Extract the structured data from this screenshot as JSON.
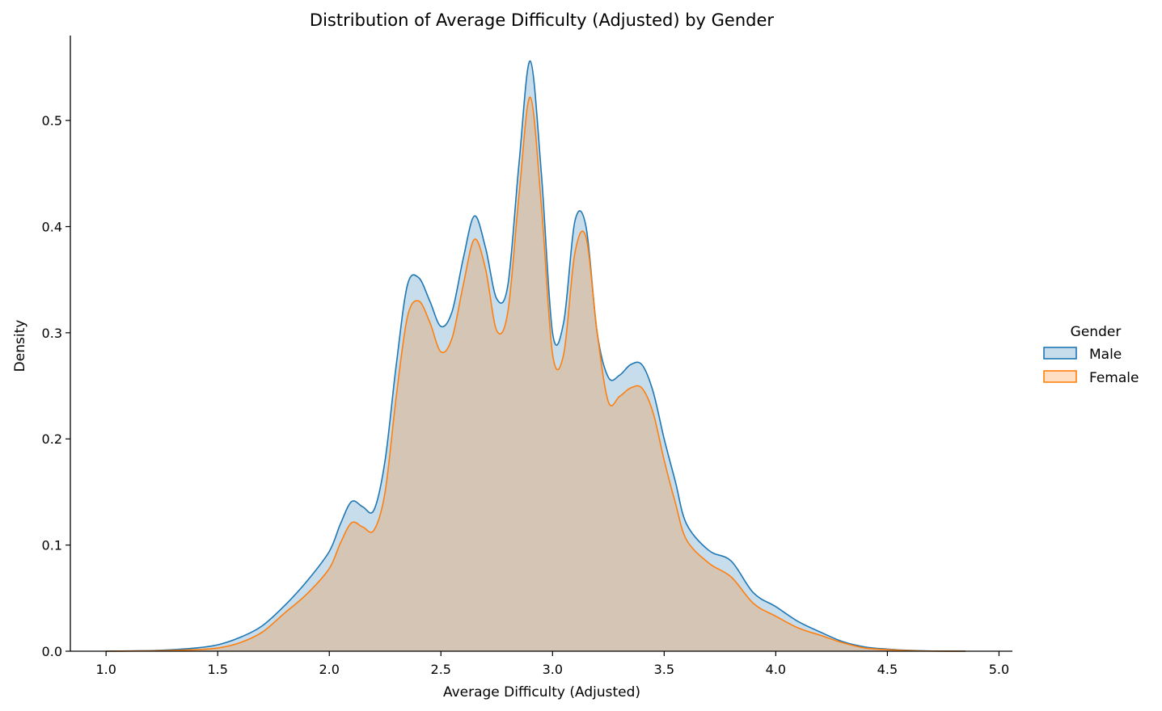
{
  "chart_data": {
    "type": "area",
    "title": "Distribution of Average Difficulty (Adjusted) by Gender",
    "xlabel": "Average Difficulty (Adjusted)",
    "ylabel": "Density",
    "xlim": [
      0.84,
      5.06
    ],
    "ylim": [
      0,
      0.58
    ],
    "xticks": [
      "1.0",
      "1.5",
      "2.0",
      "2.5",
      "3.0",
      "3.5",
      "4.0",
      "4.5",
      "5.0"
    ],
    "yticks": [
      "0.0",
      "0.1",
      "0.2",
      "0.3",
      "0.4",
      "0.5"
    ],
    "grid": false,
    "legend": {
      "title": "Gender",
      "placement": "right",
      "entries": [
        "Male",
        "Female"
      ]
    },
    "series": [
      {
        "name": "Male",
        "line_color": "#1f77b4",
        "fill_color": "#1f77b4",
        "x": [
          1.0,
          1.2,
          1.3,
          1.4,
          1.5,
          1.6,
          1.7,
          1.8,
          1.9,
          2.0,
          2.05,
          2.1,
          2.15,
          2.2,
          2.25,
          2.3,
          2.35,
          2.4,
          2.45,
          2.5,
          2.55,
          2.6,
          2.65,
          2.7,
          2.75,
          2.8,
          2.85,
          2.9,
          2.95,
          3.0,
          3.05,
          3.1,
          3.15,
          3.2,
          3.25,
          3.3,
          3.35,
          3.4,
          3.45,
          3.5,
          3.55,
          3.6,
          3.7,
          3.8,
          3.9,
          4.0,
          4.1,
          4.2,
          4.3,
          4.4,
          4.5,
          4.6,
          4.7,
          4.85
        ],
        "y": [
          0.0,
          0.0005,
          0.0015,
          0.003,
          0.006,
          0.013,
          0.024,
          0.043,
          0.066,
          0.094,
          0.12,
          0.141,
          0.136,
          0.133,
          0.18,
          0.27,
          0.345,
          0.352,
          0.33,
          0.306,
          0.32,
          0.37,
          0.41,
          0.38,
          0.332,
          0.345,
          0.46,
          0.556,
          0.45,
          0.3,
          0.31,
          0.405,
          0.4,
          0.3,
          0.258,
          0.26,
          0.27,
          0.27,
          0.245,
          0.2,
          0.16,
          0.12,
          0.095,
          0.085,
          0.055,
          0.042,
          0.028,
          0.018,
          0.009,
          0.004,
          0.002,
          0.0008,
          0.0002,
          0.0
        ]
      },
      {
        "name": "Female",
        "line_color": "#ff7f0e",
        "fill_color": "#ff7f0e",
        "x": [
          1.0,
          1.2,
          1.3,
          1.4,
          1.5,
          1.6,
          1.7,
          1.8,
          1.9,
          2.0,
          2.05,
          2.1,
          2.15,
          2.2,
          2.25,
          2.3,
          2.35,
          2.4,
          2.45,
          2.5,
          2.55,
          2.6,
          2.65,
          2.7,
          2.75,
          2.8,
          2.85,
          2.9,
          2.95,
          3.0,
          3.05,
          3.1,
          3.15,
          3.2,
          3.25,
          3.3,
          3.35,
          3.4,
          3.45,
          3.5,
          3.55,
          3.6,
          3.7,
          3.8,
          3.9,
          4.0,
          4.1,
          4.2,
          4.3,
          4.4,
          4.5,
          4.6,
          4.7,
          4.85
        ],
        "y": [
          0.0,
          0.0003,
          0.0008,
          0.0015,
          0.003,
          0.008,
          0.018,
          0.036,
          0.054,
          0.078,
          0.102,
          0.121,
          0.117,
          0.114,
          0.15,
          0.24,
          0.315,
          0.33,
          0.31,
          0.282,
          0.295,
          0.345,
          0.388,
          0.36,
          0.302,
          0.32,
          0.43,
          0.522,
          0.42,
          0.28,
          0.28,
          0.375,
          0.39,
          0.3,
          0.235,
          0.24,
          0.248,
          0.248,
          0.225,
          0.18,
          0.14,
          0.105,
          0.083,
          0.07,
          0.045,
          0.033,
          0.022,
          0.015,
          0.008,
          0.003,
          0.0015,
          0.0005,
          0.0001,
          0.0
        ]
      }
    ]
  }
}
